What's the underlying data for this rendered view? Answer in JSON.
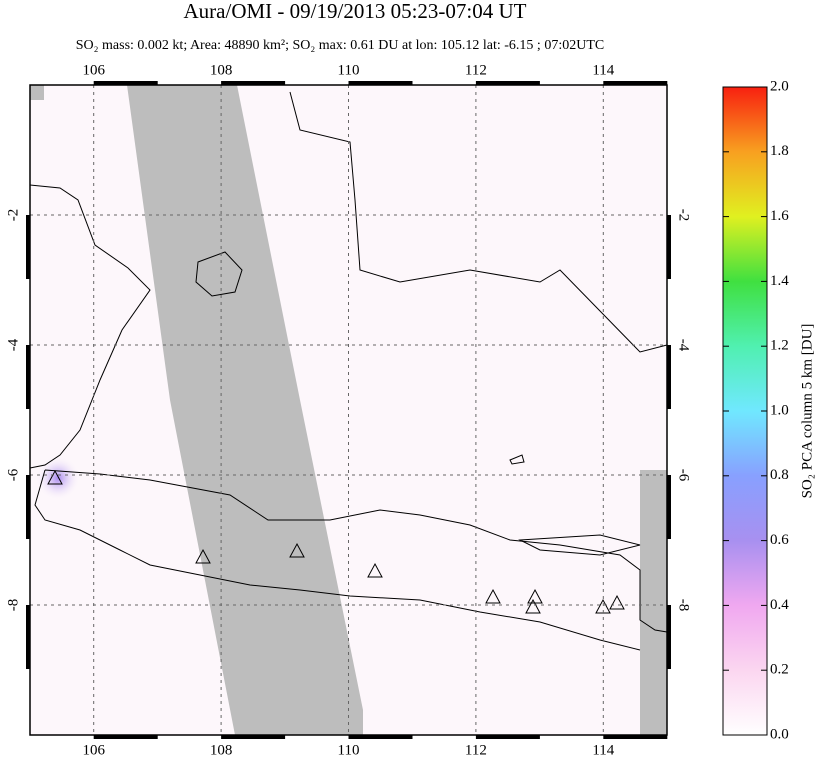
{
  "chart_data": {
    "type": "map",
    "title": "Aura/OMI - 09/19/2013 05:23-07:04 UT",
    "subtitle": "SO₂ mass: 0.002 kt; Area: 48890 km²; SO₂ max: 0.61 DU at lon: 105.12 lat: -6.15 ; 07:02UTC",
    "xlim": [
      105,
      115
    ],
    "xticks": [
      106,
      108,
      110,
      112,
      114
    ],
    "ylim": [
      -10,
      0
    ],
    "yticks": [
      -2,
      -4,
      -6,
      -8
    ],
    "grid": true,
    "colorbar": {
      "label": "SO₂ PCA column 5 km [DU]",
      "lim": [
        0,
        2
      ],
      "ticks": [
        {
          "value": 0,
          "label": "0.0"
        },
        0.2,
        0.4,
        0.6,
        0.8,
        {
          "value": 1,
          "label": "1.0"
        },
        1.2,
        1.4,
        1.6,
        1.8,
        {
          "value": 2,
          "label": "2.0"
        }
      ]
    }
  }
}
